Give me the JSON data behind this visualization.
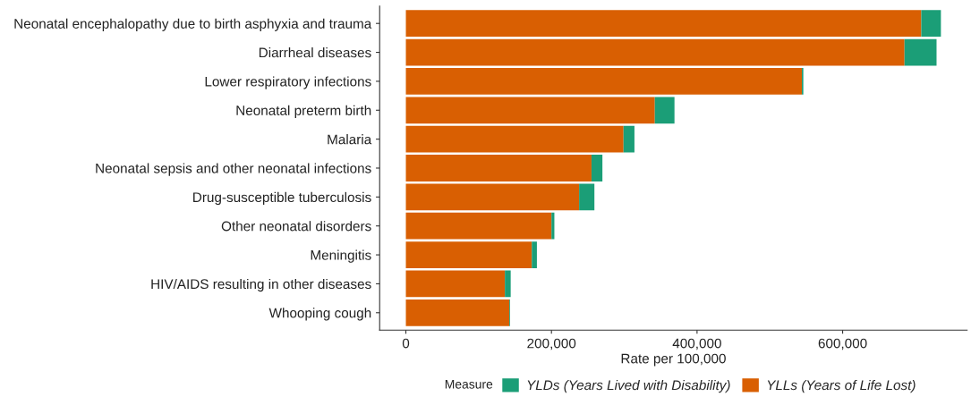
{
  "chart_data": {
    "type": "bar",
    "orientation": "horizontal",
    "stacked": true,
    "categories": [
      "Neonatal encephalopathy due to birth asphyxia and trauma",
      "Diarrheal diseases",
      "Lower respiratory infections",
      "Neonatal preterm birth",
      "Malaria",
      "Neonatal sepsis and other neonatal infections",
      "Drug-susceptible tuberculosis",
      "Other neonatal disorders",
      "Meningitis",
      "HIV/AIDS resulting in other diseases",
      "Whooping cough"
    ],
    "series": [
      {
        "name": "YLLs (Years of Life Lost)",
        "color": "#d95f02",
        "values": [
          708000,
          685000,
          544000,
          342000,
          299000,
          255000,
          238000,
          200000,
          173000,
          136000,
          142000
        ]
      },
      {
        "name": "YLDs (Years Lived with Disability)",
        "color": "#1b9e77",
        "values": [
          27000,
          44000,
          2000,
          27000,
          15000,
          15000,
          21000,
          4000,
          7000,
          8000,
          1000
        ]
      }
    ],
    "xlabel": "Rate per 100,000",
    "legend_title": "Measure",
    "legend": "bottom",
    "grid": false,
    "xlim": [
      -36000,
      771000
    ],
    "xticks": [
      {
        "value": 0,
        "label": "0"
      },
      {
        "value": 200000,
        "label": "200,000"
      },
      {
        "value": 400000,
        "label": "400,000"
      },
      {
        "value": 600000,
        "label": "600,000"
      }
    ]
  }
}
